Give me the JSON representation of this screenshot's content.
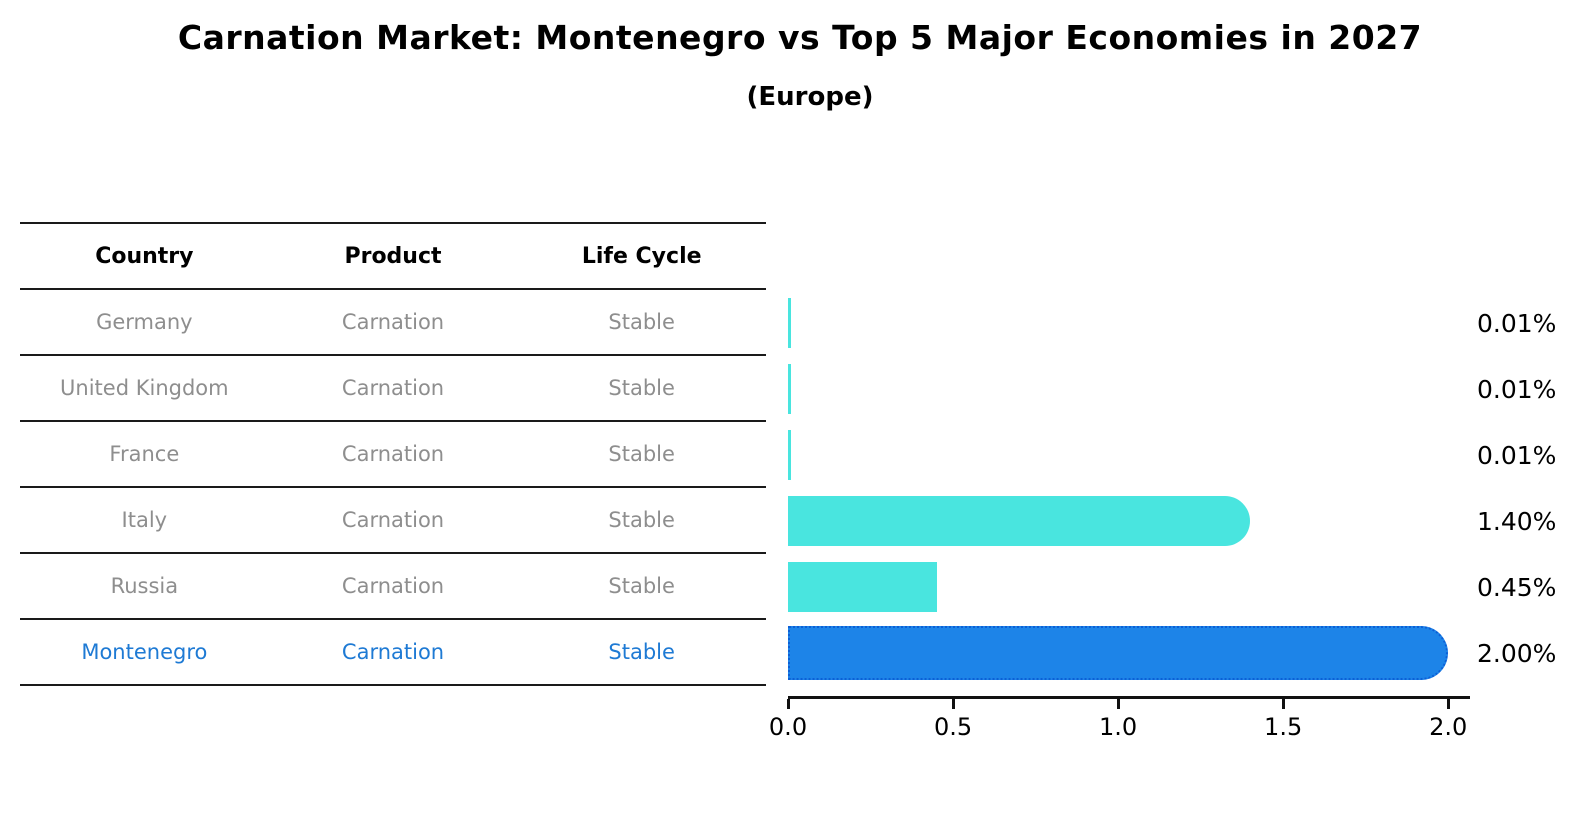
{
  "chart_data": {
    "type": "bar",
    "orientation": "horizontal",
    "title": "Carnation Market: Montenegro vs Top 5 Major Economies in 2027",
    "subtitle": "(Europe)",
    "categories": [
      "Germany",
      "United Kingdom",
      "France",
      "Italy",
      "Russia",
      "Montenegro"
    ],
    "values": [
      0.01,
      0.01,
      0.01,
      1.4,
      0.45,
      2.0
    ],
    "value_labels": [
      "0.01%",
      "0.01%",
      "0.01%",
      "1.40%",
      "0.45%",
      "2.00%"
    ],
    "xlim": [
      0,
      2.06
    ],
    "xticks": [
      0.0,
      0.5,
      1.0,
      1.5,
      2.0
    ],
    "xtick_labels": [
      "0.0",
      "0.5",
      "1.0",
      "1.5",
      "2.0"
    ],
    "bar_color": "#49e5df",
    "highlight_color": "#1d84e8",
    "highlight_index": 5,
    "grid": false,
    "legend": false
  },
  "table": {
    "columns": [
      "Country",
      "Product",
      "Life Cycle"
    ],
    "rows": [
      {
        "country": "Germany",
        "product": "Carnation",
        "life_cycle": "Stable"
      },
      {
        "country": "United Kingdom",
        "product": "Carnation",
        "life_cycle": "Stable"
      },
      {
        "country": "France",
        "product": "Carnation",
        "life_cycle": "Stable"
      },
      {
        "country": "Italy",
        "product": "Carnation",
        "life_cycle": "Stable"
      },
      {
        "country": "Russia",
        "product": "Carnation",
        "life_cycle": "Stable"
      },
      {
        "country": "Montenegro",
        "product": "Carnation",
        "life_cycle": "Stable"
      }
    ],
    "highlight_row_color": "#1e7ad4",
    "text_color": "#8e8e8e"
  }
}
